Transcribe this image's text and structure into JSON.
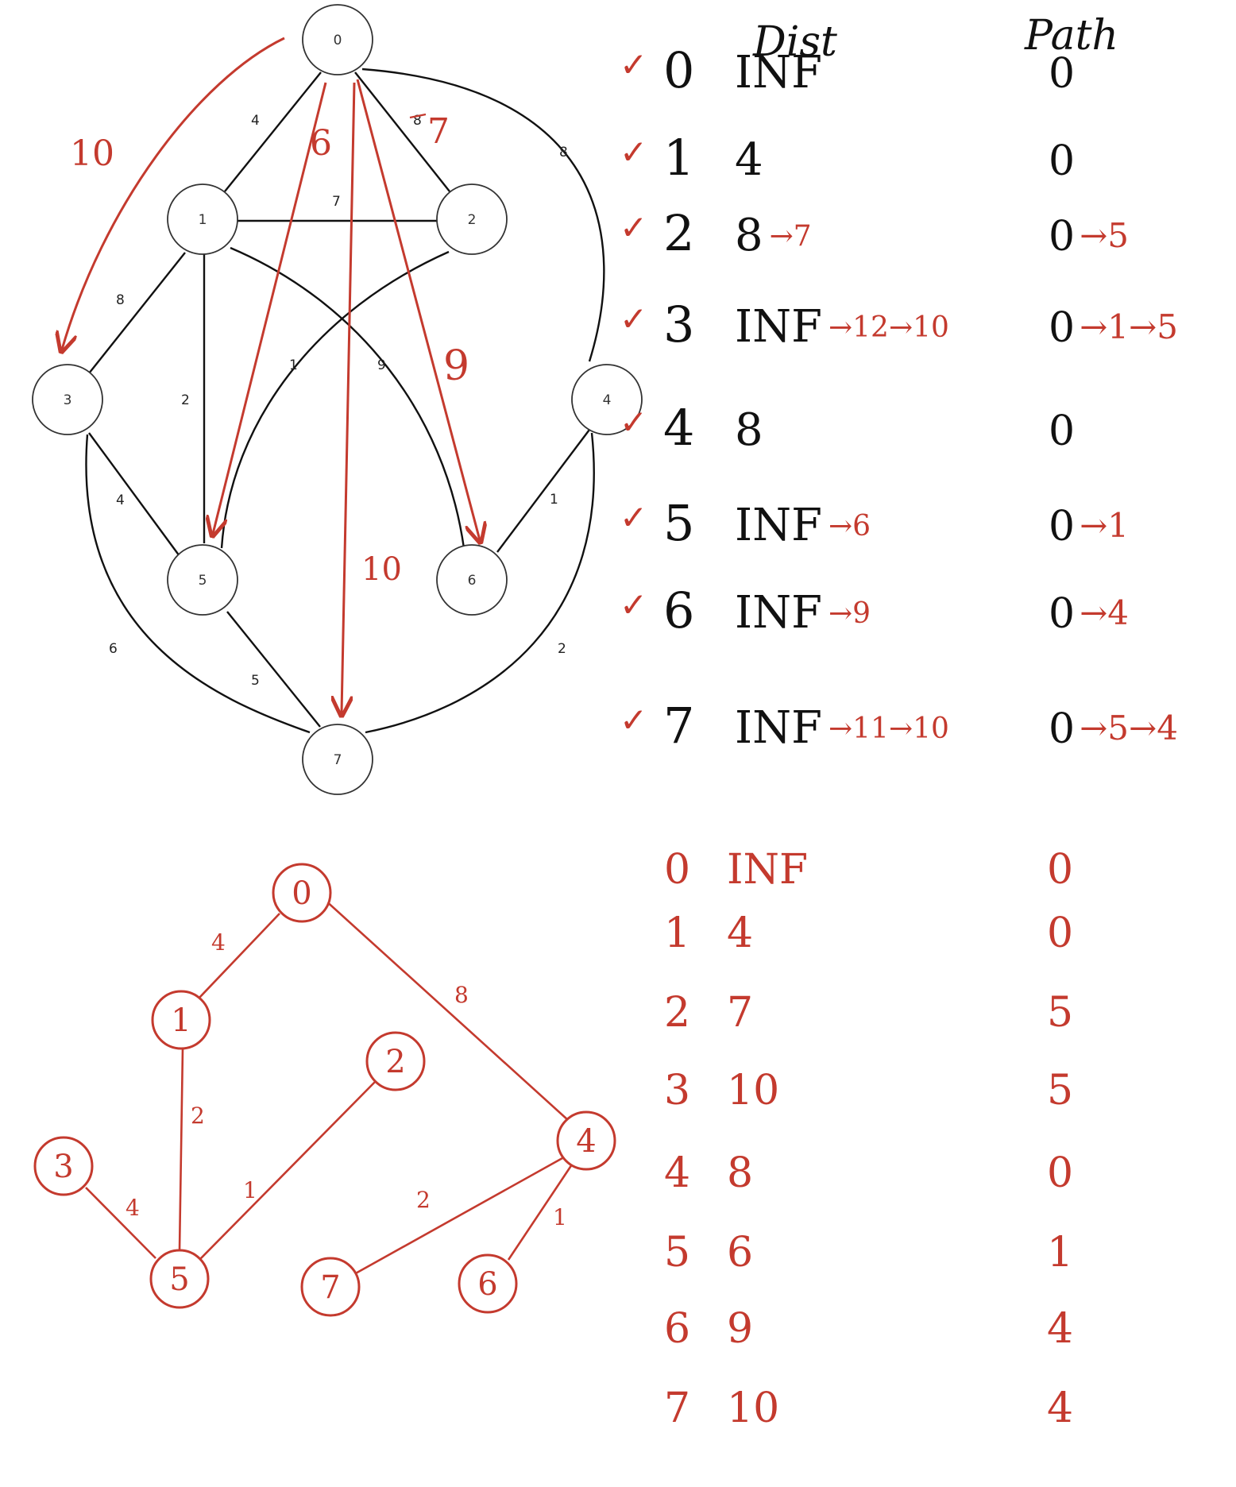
{
  "graph": {
    "nodes": [
      "0",
      "1",
      "2",
      "3",
      "4",
      "5",
      "6",
      "7"
    ],
    "edges": [
      {
        "id": "e01",
        "w": "4"
      },
      {
        "id": "e02",
        "w": "8"
      },
      {
        "id": "e04",
        "w": "8"
      },
      {
        "id": "e12",
        "w": "7"
      },
      {
        "id": "e13",
        "w": "8"
      },
      {
        "id": "e15",
        "w": "2"
      },
      {
        "id": "e16",
        "w": "9"
      },
      {
        "id": "e25",
        "w": "1"
      },
      {
        "id": "e35",
        "w": "4"
      },
      {
        "id": "e37",
        "w": "6"
      },
      {
        "id": "e46",
        "w": "1"
      },
      {
        "id": "e47",
        "w": "2"
      },
      {
        "id": "e57",
        "w": "5"
      }
    ],
    "annotations": {
      "arrow_to_3": "10",
      "arrow_to_5": "6",
      "arrow_to_2": "7",
      "arrow_to_6": "9",
      "arrow_to_7": "10"
    }
  },
  "table1": {
    "header_dist": "Dist",
    "header_path": "Path",
    "rows": [
      {
        "check": "✓",
        "v": "0",
        "dist": "INF",
        "dist_red": "",
        "path": "0",
        "path_red": ""
      },
      {
        "check": "✓",
        "v": "1",
        "dist": "4",
        "dist_red": "",
        "path": "0",
        "path_red": ""
      },
      {
        "check": "✓",
        "v": "2",
        "dist": "8",
        "dist_red": "→7",
        "path": "0",
        "path_red": "→5"
      },
      {
        "check": "✓",
        "v": "3",
        "dist": "INF",
        "dist_red": "→12→10",
        "path": "0",
        "path_red": "→1→5"
      },
      {
        "check": "✓",
        "v": "4",
        "dist": "8",
        "dist_red": "",
        "path": "0",
        "path_red": ""
      },
      {
        "check": "✓",
        "v": "5",
        "dist": "INF",
        "dist_red": "→6",
        "path": "0",
        "path_red": "→1"
      },
      {
        "check": "✓",
        "v": "6",
        "dist": "INF",
        "dist_red": "→9",
        "path": "0",
        "path_red": "→4"
      },
      {
        "check": "✓",
        "v": "7",
        "dist": "INF",
        "dist_red": "→11→10",
        "path": "0",
        "path_red": "→5→4"
      }
    ]
  },
  "tree": {
    "nodes": [
      "0",
      "1",
      "2",
      "3",
      "4",
      "5",
      "6",
      "7"
    ],
    "edges": [
      {
        "id": "t01",
        "w": "4"
      },
      {
        "id": "t04",
        "w": "8"
      },
      {
        "id": "t15",
        "w": "2"
      },
      {
        "id": "t25",
        "w": "1"
      },
      {
        "id": "t35",
        "w": "4"
      },
      {
        "id": "t47",
        "w": "2"
      },
      {
        "id": "t46",
        "w": "1"
      }
    ]
  },
  "table2": {
    "rows": [
      {
        "v": "0",
        "dist": "INF",
        "path": "0"
      },
      {
        "v": "1",
        "dist": "4",
        "path": "0"
      },
      {
        "v": "2",
        "dist": "7",
        "path": "5"
      },
      {
        "v": "3",
        "dist": "10",
        "path": "5"
      },
      {
        "v": "4",
        "dist": "8",
        "path": "0"
      },
      {
        "v": "5",
        "dist": "6",
        "path": "1"
      },
      {
        "v": "6",
        "dist": "9",
        "path": "4"
      },
      {
        "v": "7",
        "dist": "10",
        "path": "4"
      }
    ]
  },
  "colors": {
    "ink": "#111111",
    "red": "#c43a2e",
    "node_stroke": "#333333"
  }
}
